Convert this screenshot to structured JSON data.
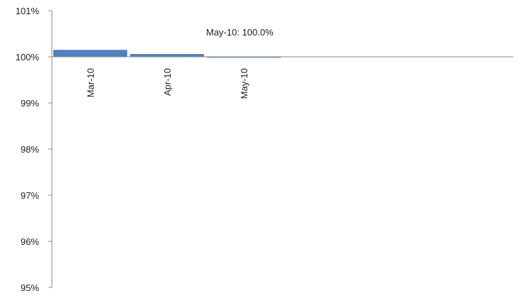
{
  "chart_data": {
    "type": "bar",
    "categories": [
      "Mar-10",
      "Apr-10",
      "May-10"
    ],
    "series": [
      {
        "values": [
          100.15,
          100.06,
          99.98
        ]
      }
    ],
    "ylim": [
      95,
      101
    ],
    "yticks": [
      "101%",
      "100%",
      "99%",
      "98%",
      "97%",
      "96%",
      "95%"
    ],
    "ytick_values": [
      101,
      100,
      99,
      98,
      97,
      96,
      95
    ],
    "baseline": 100,
    "bar_color": "#4f81bd",
    "grid": false,
    "annotation": "May-10: 100.0%"
  }
}
